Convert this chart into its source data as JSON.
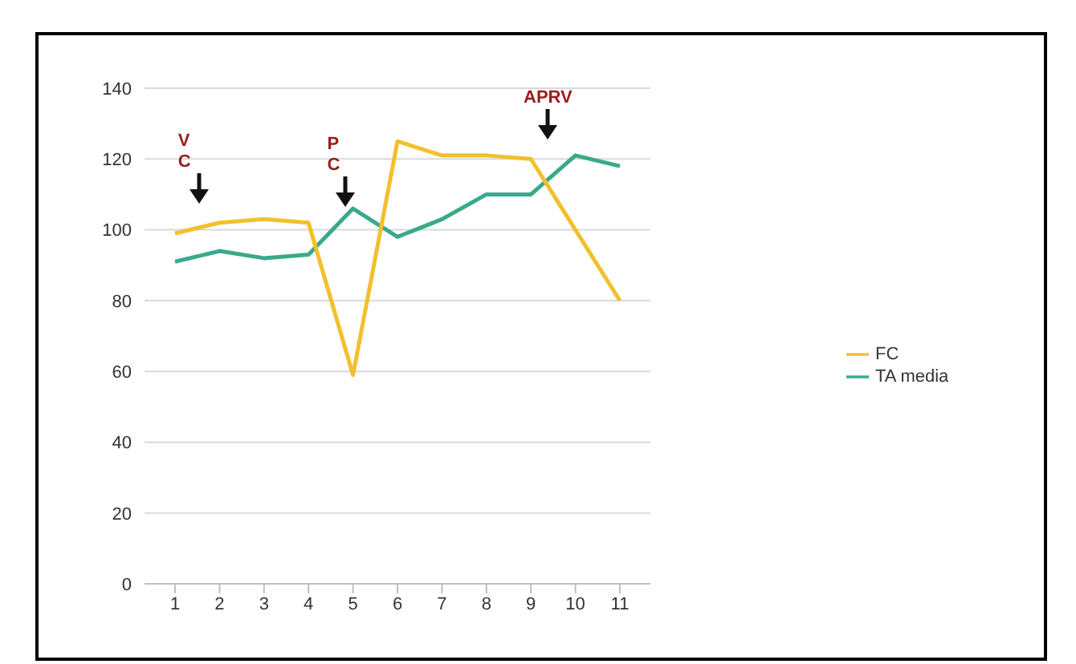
{
  "chart_data": {
    "type": "line",
    "categories": [
      "1",
      "2",
      "3",
      "4",
      "5",
      "6",
      "7",
      "8",
      "9",
      "10",
      "11"
    ],
    "series": [
      {
        "name": "TA media",
        "color": "#3aa98a",
        "values": [
          91,
          94,
          92,
          93,
          106,
          98,
          103,
          110,
          110,
          121,
          118
        ]
      },
      {
        "name": "FC",
        "color": "#f2c02e",
        "values": [
          99,
          102,
          103,
          102,
          59,
          125,
          121,
          121,
          120,
          100,
          80
        ]
      }
    ],
    "ylim": [
      0,
      140
    ],
    "yticks": [
      0,
      20,
      40,
      60,
      80,
      100,
      120,
      140
    ],
    "grid": "y",
    "legend": "right",
    "marker": "none",
    "line_style": "solid",
    "annotations": [
      "V\nC",
      "P\nC",
      "APRV"
    ]
  }
}
